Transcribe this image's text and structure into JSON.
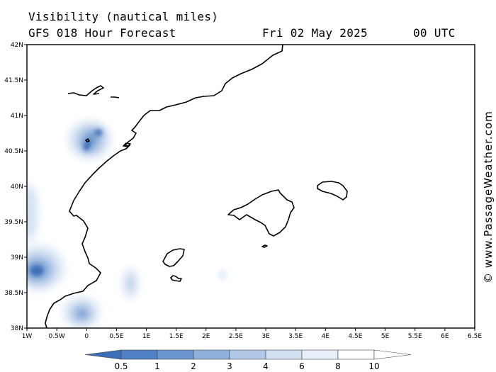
{
  "header": {
    "variable": "Visibility (nautical miles)",
    "model": "GFS 018 Hour Forecast",
    "date": "Fri 02 May 2025",
    "time": "00 UTC"
  },
  "watermark": "© www.PassageWeather.com",
  "map": {
    "lon_range": [
      -1,
      6.5
    ],
    "lat_range": [
      38,
      42
    ],
    "x_ticks": [
      "1W",
      "0.5W",
      "0",
      "0.5E",
      "1E",
      "1.5E",
      "2E",
      "2.5E",
      "3E",
      "3.5E",
      "4E",
      "4.5E",
      "5E",
      "5.5E",
      "6E",
      "6.5E"
    ],
    "y_ticks": [
      "42N",
      "41.5N",
      "41N",
      "40.5N",
      "40N",
      "39.5N",
      "39N",
      "38.5N",
      "38N"
    ]
  },
  "legend": {
    "labels": [
      "0.5",
      "1",
      "2",
      "3",
      "4",
      "6",
      "8",
      "10"
    ],
    "colors": [
      "#3d6fb8",
      "#4f80c3",
      "#6994ce",
      "#8eb0db",
      "#b1c9e7",
      "#d2e1f2",
      "#e8f0f9",
      "#ffffff"
    ]
  }
}
